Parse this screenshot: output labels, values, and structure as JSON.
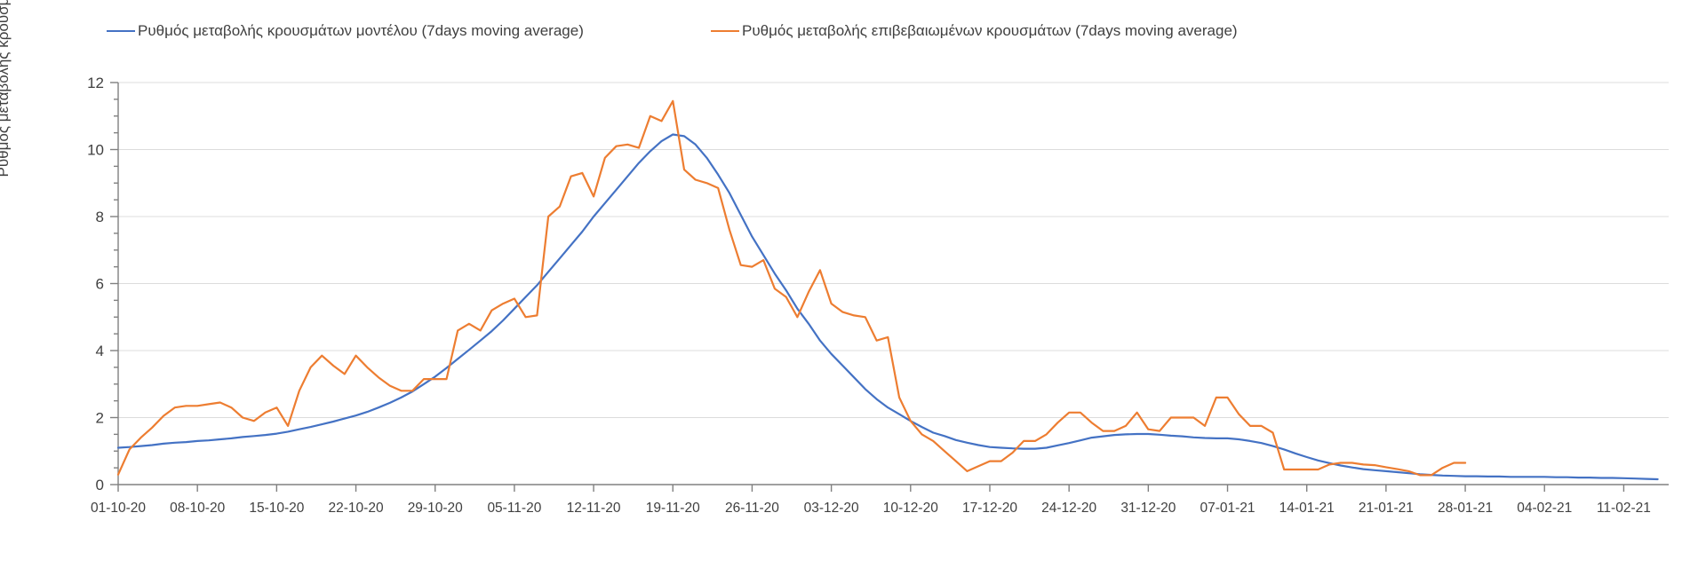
{
  "page": {
    "background": "#ffffff"
  },
  "chart_data": {
    "type": "line",
    "title": "",
    "xlabel": "",
    "ylabel": "Ρυθμός μεταβολής κρουσμάτων",
    "ylim": [
      0,
      12
    ],
    "y_ticks": [
      0,
      2,
      4,
      6,
      8,
      10,
      12
    ],
    "y_minor_tick_step": 0.5,
    "grid": "horizontal",
    "legend_position": "top",
    "x_start_date": "01-10-20",
    "x_step_days": 1,
    "x_tick_every_days": 7,
    "x_tick_labels": [
      "01-10-20",
      "08-10-20",
      "15-10-20",
      "22-10-20",
      "29-10-20",
      "05-11-20",
      "12-11-20",
      "19-11-20",
      "26-11-20",
      "03-12-20",
      "10-12-20",
      "17-12-20",
      "24-12-20",
      "31-12-20",
      "07-01-21",
      "14-01-21",
      "21-01-21",
      "28-01-21",
      "04-02-21",
      "11-02-21"
    ],
    "colors": {
      "gridline": "#dcdcdc",
      "axis": "#808080",
      "tick_text": "#404040"
    },
    "series": [
      {
        "name": "Ρυθμός μεταβολής κρουσμάτων μοντέλου (7days moving average)",
        "color": "#4472c4",
        "values": [
          1.1,
          1.12,
          1.15,
          1.18,
          1.22,
          1.25,
          1.27,
          1.3,
          1.32,
          1.35,
          1.38,
          1.42,
          1.45,
          1.48,
          1.52,
          1.58,
          1.65,
          1.72,
          1.8,
          1.88,
          1.97,
          2.06,
          2.17,
          2.3,
          2.44,
          2.6,
          2.78,
          3.0,
          3.22,
          3.48,
          3.75,
          4.02,
          4.3,
          4.58,
          4.9,
          5.25,
          5.6,
          5.95,
          6.35,
          6.75,
          7.15,
          7.55,
          8.0,
          8.4,
          8.8,
          9.2,
          9.6,
          9.95,
          10.25,
          10.45,
          10.4,
          10.15,
          9.75,
          9.25,
          8.7,
          8.05,
          7.4,
          6.85,
          6.3,
          5.8,
          5.25,
          4.8,
          4.3,
          3.9,
          3.55,
          3.2,
          2.85,
          2.55,
          2.3,
          2.1,
          1.9,
          1.72,
          1.55,
          1.45,
          1.33,
          1.25,
          1.18,
          1.12,
          1.1,
          1.08,
          1.07,
          1.07,
          1.1,
          1.17,
          1.24,
          1.32,
          1.4,
          1.44,
          1.48,
          1.5,
          1.51,
          1.51,
          1.49,
          1.46,
          1.44,
          1.41,
          1.39,
          1.38,
          1.38,
          1.35,
          1.3,
          1.24,
          1.15,
          1.05,
          0.93,
          0.82,
          0.72,
          0.64,
          0.57,
          0.51,
          0.46,
          0.43,
          0.4,
          0.37,
          0.34,
          0.31,
          0.29,
          0.27,
          0.26,
          0.25,
          0.25,
          0.24,
          0.24,
          0.23,
          0.23,
          0.23,
          0.23,
          0.22,
          0.22,
          0.21,
          0.21,
          0.2,
          0.2,
          0.19,
          0.18,
          0.17,
          0.16
        ]
      },
      {
        "name": "Ρυθμός μεταβολής επιβεβαιωμένων κρουσμάτων (7days moving average)",
        "color": "#ed7d31",
        "values": [
          0.3,
          1.05,
          1.4,
          1.7,
          2.05,
          2.3,
          2.35,
          2.35,
          2.4,
          2.45,
          2.3,
          2.0,
          1.9,
          2.15,
          2.3,
          1.75,
          2.8,
          3.5,
          3.85,
          3.55,
          3.3,
          3.85,
          3.5,
          3.2,
          2.95,
          2.8,
          2.8,
          3.15,
          3.15,
          3.15,
          4.6,
          4.8,
          4.6,
          5.2,
          5.4,
          5.55,
          5.0,
          5.05,
          8.0,
          8.3,
          9.2,
          9.3,
          8.6,
          9.75,
          10.1,
          10.15,
          10.05,
          11.0,
          10.85,
          11.45,
          9.4,
          9.1,
          9.0,
          8.85,
          7.6,
          6.55,
          6.5,
          6.7,
          5.85,
          5.6,
          5.0,
          5.75,
          6.4,
          5.4,
          5.15,
          5.05,
          5.0,
          4.3,
          4.4,
          2.6,
          1.9,
          1.5,
          1.3,
          1.0,
          0.7,
          0.4,
          0.55,
          0.7,
          0.7,
          0.95,
          1.3,
          1.3,
          1.5,
          1.85,
          2.15,
          2.15,
          1.85,
          1.6,
          1.6,
          1.75,
          2.15,
          1.65,
          1.6,
          2.0,
          2.0,
          2.0,
          1.75,
          2.6,
          2.6,
          2.1,
          1.75,
          1.75,
          1.55,
          0.45,
          0.45,
          0.45,
          0.45,
          0.6,
          0.65,
          0.65,
          0.6,
          0.58,
          0.52,
          0.46,
          0.4,
          0.28,
          0.28,
          0.5,
          0.65,
          0.65
        ]
      }
    ]
  }
}
